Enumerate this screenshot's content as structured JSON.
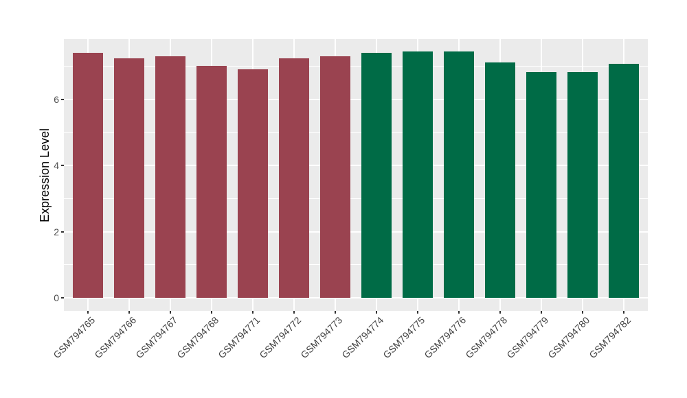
{
  "figure": {
    "background": "#FFFFFF",
    "panel_background": "#EBEBEB",
    "grid_color": "#FFFFFF",
    "tick_mark_color": "#333333",
    "y_tick_label_color": "#4D4D4D",
    "x_tick_label_color": "#404040",
    "axis_title_color": "#000000",
    "red_bar_color": "#9A4350",
    "green_bar_color": "#006B46"
  },
  "chart_data": {
    "type": "bar",
    "title": "",
    "xlabel": "",
    "ylabel": "Expression Level",
    "categories": [
      "GSM794765",
      "GSM794766",
      "GSM794767",
      "GSM794768",
      "GSM794771",
      "GSM794772",
      "GSM794773",
      "GSM794774",
      "GSM794775",
      "GSM794776",
      "GSM794778",
      "GSM794779",
      "GSM794780",
      "GSM794782"
    ],
    "values": [
      7.41,
      7.25,
      7.3,
      7.02,
      6.92,
      7.25,
      7.31,
      7.41,
      7.46,
      7.46,
      7.12,
      6.83,
      6.83,
      7.07
    ],
    "bar_colors": [
      "#9A4350",
      "#9A4350",
      "#9A4350",
      "#9A4350",
      "#9A4350",
      "#9A4350",
      "#9A4350",
      "#006B46",
      "#006B46",
      "#006B46",
      "#006B46",
      "#006B46",
      "#006B46",
      "#006B46"
    ],
    "groups": [
      {
        "color": "#9A4350",
        "samples": [
          "GSM794765",
          "GSM794766",
          "GSM794767",
          "GSM794768",
          "GSM794771",
          "GSM794772",
          "GSM794773"
        ]
      },
      {
        "color": "#006B46",
        "samples": [
          "GSM794774",
          "GSM794775",
          "GSM794776",
          "GSM794778",
          "GSM794779",
          "GSM794780",
          "GSM794782"
        ]
      }
    ],
    "yticks": [
      0,
      2,
      4,
      6
    ],
    "minor_yticks": [
      1,
      3,
      5,
      7
    ],
    "ylim": [
      -0.39,
      7.83
    ],
    "grid": true,
    "legend_position": "none",
    "x_label_rotation_deg": 45
  }
}
